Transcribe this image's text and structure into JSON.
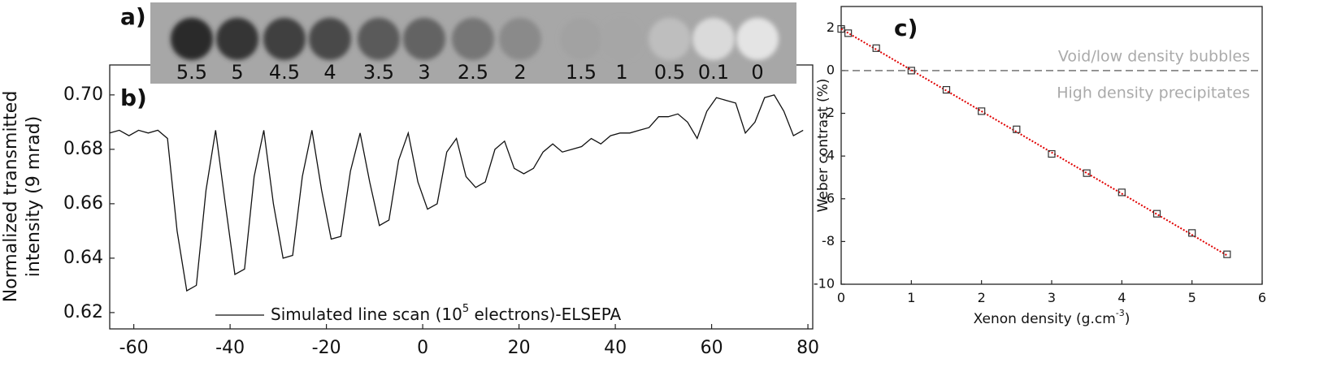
{
  "chart_data": [
    {
      "type": "image",
      "title": "a)",
      "categories": [
        "5.5",
        "5",
        "4.5",
        "4",
        "3.5",
        "3",
        "2.5",
        "2",
        "1.5",
        "1",
        "0.5",
        "0.1",
        "0"
      ],
      "spot_colors": [
        "#2b2b2b",
        "#353535",
        "#404040",
        "#4a4a4a",
        "#5a5a5a",
        "#646464",
        "#767676",
        "#8a8a8a",
        "#a2a2a2",
        "#a6a6a6",
        "#bebebe",
        "#dadada",
        "#e4e4e4"
      ],
      "background": "#a7a7a7"
    },
    {
      "type": "line",
      "title": "b)",
      "ylabel": [
        "Normalized transmitted",
        "intensity  (9 mrad)"
      ],
      "x": [
        -65,
        -63,
        -61,
        -59,
        -57,
        -55,
        -53,
        -51,
        -49,
        -47,
        -45,
        -43,
        -41,
        -39,
        -37,
        -35,
        -33,
        -31,
        -29,
        -27,
        -25,
        -23,
        -21,
        -19,
        -17,
        -15,
        -13,
        -11,
        -9,
        -7,
        -5,
        -3,
        -1,
        1,
        3,
        5,
        7,
        9,
        11,
        13,
        15,
        17,
        19,
        21,
        23,
        25,
        27,
        29,
        31,
        33,
        35,
        37,
        39,
        41,
        43,
        45,
        47,
        49,
        51,
        53,
        55,
        57,
        59,
        61,
        63,
        65,
        67,
        69,
        71,
        73,
        75,
        77,
        79
      ],
      "series": [
        {
          "name": "Simulated line scan (10",
          "name_sup": "5",
          "name_end": " electrons)-ELSEPA",
          "color": "#111111",
          "values": [
            0.686,
            0.687,
            0.685,
            0.687,
            0.686,
            0.687,
            0.684,
            0.65,
            0.628,
            0.63,
            0.665,
            0.687,
            0.66,
            0.634,
            0.636,
            0.67,
            0.687,
            0.66,
            0.64,
            0.641,
            0.67,
            0.687,
            0.665,
            0.647,
            0.648,
            0.672,
            0.686,
            0.668,
            0.652,
            0.654,
            0.676,
            0.686,
            0.668,
            0.658,
            0.66,
            0.679,
            0.684,
            0.67,
            0.666,
            0.668,
            0.68,
            0.683,
            0.673,
            0.671,
            0.673,
            0.679,
            0.682,
            0.679,
            0.68,
            0.681,
            0.684,
            0.682,
            0.685,
            0.686,
            0.686,
            0.687,
            0.688,
            0.692,
            0.692,
            0.693,
            0.69,
            0.684,
            0.694,
            0.699,
            0.698,
            0.697,
            0.686,
            0.69,
            0.699,
            0.7,
            0.694,
            0.685,
            0.687
          ]
        }
      ],
      "xlim": [
        -65,
        81
      ],
      "xticks": [
        -60,
        -40,
        -20,
        0,
        20,
        40,
        60,
        80
      ],
      "ylim": [
        0.614,
        0.711
      ],
      "yticks": [
        0.62,
        0.64,
        0.66,
        0.68,
        {
          "value": 0.7,
          "label": "0.70"
        }
      ]
    },
    {
      "type": "scatter",
      "title": "c)",
      "xlabel": "Xenon density (g.cm",
      "xlabel_sup": "-3",
      "xlabel_end": ")",
      "ylabel": "Weber contrast (%)",
      "x": [
        0,
        0.1,
        0.5,
        1,
        1.5,
        2,
        2.5,
        3,
        3.5,
        4,
        4.5,
        5,
        5.5
      ],
      "values": [
        1.95,
        1.75,
        1.05,
        0,
        -0.9,
        -1.9,
        -2.75,
        -3.9,
        -4.8,
        -5.7,
        -6.7,
        -7.6,
        -8.6
      ],
      "color": "#333333",
      "fit": {
        "color": "#e00000",
        "x": [
          0,
          5.5
        ],
        "values": [
          1.95,
          -8.65
        ]
      },
      "reference_line": 0,
      "annotations": [
        "Void/low density bubbles",
        "High density precipitates"
      ],
      "xlim": [
        0,
        6
      ],
      "xticks": [
        0,
        1,
        2,
        3,
        4,
        5,
        6
      ],
      "ylim": [
        -10,
        3
      ],
      "yticks": [
        -10,
        -8,
        -6,
        -4,
        -2,
        0,
        2
      ]
    }
  ]
}
